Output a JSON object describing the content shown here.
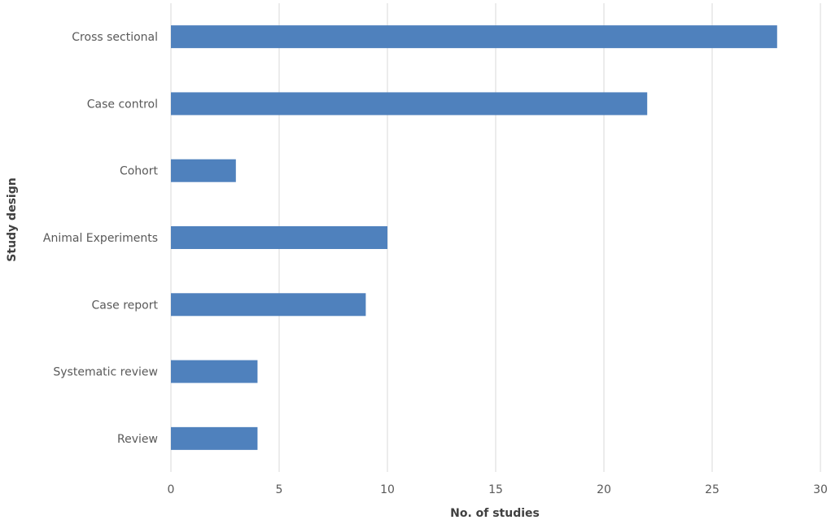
{
  "chart_data": {
    "type": "bar",
    "orientation": "horizontal",
    "categories": [
      "Cross sectional",
      "Case control",
      "Cohort",
      "Animal Experiments",
      "Case report",
      "Systematic review",
      "Review"
    ],
    "values": [
      28,
      22,
      3,
      10,
      9,
      4,
      4
    ],
    "xlabel": "No. of studies",
    "ylabel": "Study design",
    "xlim": [
      0,
      30
    ],
    "xticks": [
      "0",
      "5",
      "10",
      "15",
      "20",
      "25",
      "30"
    ],
    "grid": true,
    "bar_color": "#4f81bd"
  }
}
